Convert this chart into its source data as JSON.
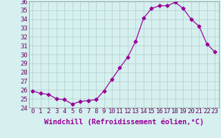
{
  "x": [
    0,
    1,
    2,
    3,
    4,
    5,
    6,
    7,
    8,
    9,
    10,
    11,
    12,
    13,
    14,
    15,
    16,
    17,
    18,
    19,
    20,
    21,
    22,
    23
  ],
  "y": [
    25.9,
    25.6,
    25.5,
    25.0,
    24.9,
    24.4,
    24.7,
    24.8,
    24.9,
    25.9,
    27.2,
    28.5,
    29.7,
    31.5,
    34.1,
    35.2,
    35.5,
    35.5,
    35.9,
    35.2,
    34.0,
    33.2,
    31.2,
    30.3
  ],
  "xlabel": "Windchill (Refroidissement éolien,°C)",
  "ylim": [
    24,
    36
  ],
  "xlim": [
    -0.5,
    23.5
  ],
  "yticks": [
    24,
    25,
    26,
    27,
    28,
    29,
    30,
    31,
    32,
    33,
    34,
    35,
    36
  ],
  "xticks": [
    0,
    1,
    2,
    3,
    4,
    5,
    6,
    7,
    8,
    9,
    10,
    11,
    12,
    13,
    14,
    15,
    16,
    17,
    18,
    19,
    20,
    21,
    22,
    23
  ],
  "line_color": "#990099",
  "marker": "D",
  "marker_size": 2.5,
  "bg_color": "#d5f0ee",
  "grid_color": "#b0cccc",
  "tick_label_fontsize": 6.5,
  "xlabel_fontsize": 7.5
}
